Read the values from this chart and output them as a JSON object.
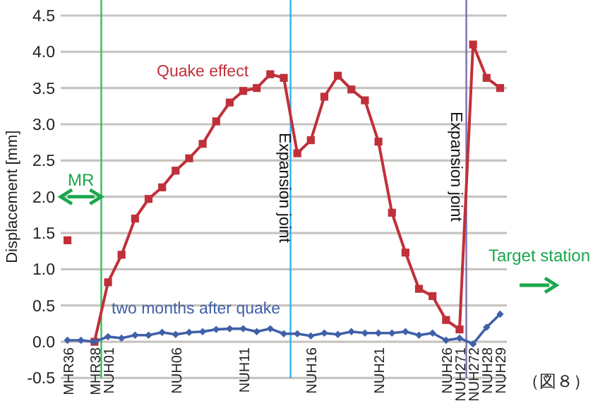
{
  "chart_data": {
    "type": "line",
    "ylabel": "Displacement [mm]",
    "categories": [
      "MHR36",
      null,
      "MHR38",
      "NUH01",
      null,
      null,
      null,
      null,
      "NUH06",
      null,
      null,
      null,
      null,
      "NUH11",
      null,
      null,
      null,
      null,
      "NUH16",
      null,
      null,
      null,
      null,
      "NUH21",
      null,
      null,
      null,
      null,
      "NUH26",
      "NUH271",
      "NUH272",
      "NUH28",
      "NUH29"
    ],
    "series": [
      {
        "name": "Quake effect",
        "color": "#c0303a",
        "marker": "square",
        "values": [
          1.4,
          null,
          0.0,
          0.82,
          1.2,
          1.7,
          1.97,
          2.13,
          2.36,
          2.53,
          2.73,
          3.04,
          3.3,
          3.46,
          3.5,
          3.69,
          3.64,
          2.6,
          2.78,
          3.38,
          3.67,
          3.48,
          3.33,
          2.76,
          1.78,
          1.23,
          0.73,
          0.63,
          0.3,
          0.17,
          4.1,
          3.64,
          3.5
        ]
      },
      {
        "name": "two months after quake",
        "color": "#4060a8",
        "marker": "diamond",
        "values": [
          0.02,
          0.02,
          0.0,
          0.07,
          0.05,
          0.09,
          0.09,
          0.13,
          0.1,
          0.13,
          0.14,
          0.17,
          0.18,
          0.18,
          0.14,
          0.18,
          0.11,
          0.11,
          0.08,
          0.12,
          0.1,
          0.14,
          0.12,
          0.12,
          0.12,
          0.14,
          0.09,
          0.12,
          0.02,
          0.05,
          -0.03,
          0.2,
          0.38
        ]
      }
    ],
    "ylim": [
      -0.5,
      4.5
    ],
    "yticks": [
      {
        "value": -0.5,
        "label": "-0.5"
      },
      {
        "value": 0,
        "label": "0.0"
      },
      {
        "value": 0.5,
        "label": "0.5"
      },
      {
        "value": 1,
        "label": "1.0"
      },
      {
        "value": 1.5,
        "label": "1.5"
      },
      {
        "value": 2,
        "label": "2.0"
      },
      {
        "value": 2.5,
        "label": "2.5"
      },
      {
        "value": 3,
        "label": "3.0"
      },
      {
        "value": 3.5,
        "label": "3.5"
      },
      {
        "value": 4,
        "label": "4.0"
      },
      {
        "value": 4.5,
        "label": "4.5"
      }
    ],
    "grid": "y",
    "legend": false,
    "annotations": [
      "MR",
      "Target station",
      "（図８）",
      "Expansion joint",
      "Expansion joint"
    ]
  }
}
